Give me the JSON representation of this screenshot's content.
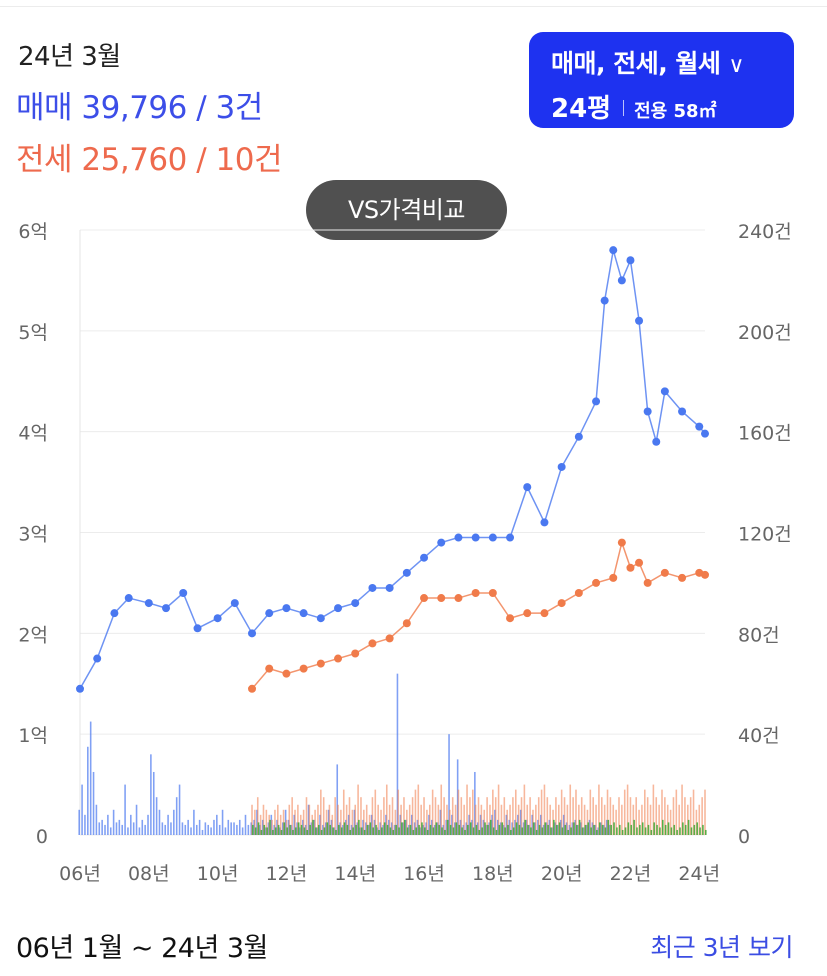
{
  "summary": {
    "period": "24년 3월",
    "sale_text": "매매 39,796 / 3건",
    "jeonse_text": "전세 25,760 / 10건"
  },
  "filter": {
    "trade_types": "매매, 전세, 월세",
    "pyeong": "24평",
    "area": "전용 58㎡"
  },
  "compare_button": "VS가격비교",
  "footer": {
    "range": "06년 1월 ~ 24년 3월",
    "recent_link": "최근 3년 보기"
  },
  "colors": {
    "sale": "#4a78f0",
    "jeonse": "#f07b4a",
    "wolse": "#47a83a",
    "button": "#1e32f0"
  },
  "icons": {
    "dropdown": "chevron-down-icon"
  },
  "chart_data": {
    "type": "line",
    "x_start": "2006-01",
    "x_end": "2024-03",
    "x_ticks": [
      "06년",
      "08년",
      "10년",
      "12년",
      "14년",
      "16년",
      "18년",
      "20년",
      "22년",
      "24년"
    ],
    "y_left_ticks": [
      "0",
      "1억",
      "2억",
      "3억",
      "4억",
      "5억",
      "6억"
    ],
    "y_left_range": [
      0,
      6
    ],
    "y_right_ticks": [
      "0",
      "40건",
      "80건",
      "120건",
      "160건",
      "200건",
      "240건"
    ],
    "y_right_range": [
      0,
      240
    ],
    "grid": true,
    "series": [
      {
        "name": "매매",
        "kind": "price",
        "dates": [
          "2006-01",
          "2006-07",
          "2007-01",
          "2007-06",
          "2008-01",
          "2008-07",
          "2009-01",
          "2009-06",
          "2010-01",
          "2010-07",
          "2011-01",
          "2011-07",
          "2012-01",
          "2012-07",
          "2013-01",
          "2013-07",
          "2014-01",
          "2014-07",
          "2015-01",
          "2015-07",
          "2016-01",
          "2016-07",
          "2017-01",
          "2017-07",
          "2018-01",
          "2018-07",
          "2019-01",
          "2019-07",
          "2020-01",
          "2020-07",
          "2021-01",
          "2021-04",
          "2021-07",
          "2021-10",
          "2022-01",
          "2022-04",
          "2022-07",
          "2022-10",
          "2023-01",
          "2023-07",
          "2024-01",
          "2024-03"
        ],
        "values": [
          1.45,
          1.75,
          2.2,
          2.35,
          2.3,
          2.25,
          2.4,
          2.05,
          2.15,
          2.3,
          2.0,
          2.2,
          2.25,
          2.2,
          2.15,
          2.25,
          2.3,
          2.45,
          2.45,
          2.6,
          2.75,
          2.9,
          2.95,
          2.95,
          2.95,
          2.95,
          3.45,
          3.1,
          3.65,
          3.95,
          4.3,
          5.3,
          5.8,
          5.5,
          5.7,
          5.1,
          4.2,
          3.9,
          4.4,
          4.2,
          4.05,
          3.98
        ]
      },
      {
        "name": "전세",
        "kind": "price",
        "dates": [
          "2011-01",
          "2011-07",
          "2012-01",
          "2012-07",
          "2013-01",
          "2013-07",
          "2014-01",
          "2014-07",
          "2015-01",
          "2015-07",
          "2016-01",
          "2016-07",
          "2017-01",
          "2017-07",
          "2018-01",
          "2018-07",
          "2019-01",
          "2019-07",
          "2020-01",
          "2020-07",
          "2021-01",
          "2021-07",
          "2021-10",
          "2022-01",
          "2022-04",
          "2022-07",
          "2023-01",
          "2023-07",
          "2024-01",
          "2024-03"
        ],
        "values": [
          1.45,
          1.65,
          1.6,
          1.65,
          1.7,
          1.75,
          1.8,
          1.9,
          1.95,
          2.1,
          2.35,
          2.35,
          2.35,
          2.4,
          2.4,
          2.15,
          2.2,
          2.2,
          2.3,
          2.4,
          2.5,
          2.55,
          2.9,
          2.65,
          2.7,
          2.5,
          2.6,
          2.55,
          2.6,
          2.58
        ]
      },
      {
        "name": "매매 거래량",
        "kind": "volume",
        "axis": "right",
        "start": "2006-01",
        "values": [
          10,
          20,
          8,
          35,
          45,
          25,
          12,
          5,
          6,
          4,
          8,
          3,
          10,
          5,
          6,
          4,
          20,
          3,
          8,
          5,
          12,
          3,
          6,
          4,
          8,
          32,
          25,
          15,
          10,
          5,
          4,
          8,
          5,
          10,
          15,
          20,
          5,
          4,
          6,
          3,
          10,
          4,
          6,
          2,
          5,
          4,
          3,
          6,
          8,
          4,
          10,
          3,
          6,
          5,
          5,
          4,
          6,
          3,
          8,
          4,
          5,
          6,
          10,
          4,
          6,
          3,
          5,
          8,
          4,
          6,
          3,
          5,
          10,
          6,
          4,
          8,
          5,
          3,
          6,
          4,
          12,
          5,
          6,
          3,
          8,
          4,
          5,
          10,
          6,
          3,
          28,
          5,
          4,
          6,
          8,
          4,
          10,
          5,
          3,
          6,
          5,
          4,
          8,
          6,
          3,
          5,
          4,
          8,
          6,
          5,
          4,
          64,
          8,
          5,
          6,
          4,
          8,
          5,
          6,
          3,
          4,
          5,
          8,
          6,
          4,
          5,
          10,
          4,
          6,
          40,
          8,
          5,
          30,
          6,
          4,
          5,
          8,
          6,
          25,
          5,
          8,
          6,
          4,
          5,
          8,
          10,
          6,
          5,
          4,
          8,
          6,
          5,
          6,
          8,
          10,
          5,
          6,
          4,
          8,
          5,
          6,
          8,
          4,
          5,
          6,
          3,
          5,
          4,
          6,
          8,
          5,
          4,
          5,
          6,
          4,
          5,
          3,
          4,
          6,
          5,
          4,
          3,
          5,
          4,
          6,
          4
        ]
      },
      {
        "name": "전세 거래량",
        "kind": "volume",
        "axis": "right",
        "start": "2011-01",
        "values": [
          12,
          10,
          15,
          8,
          12,
          10,
          8,
          6,
          10,
          12,
          8,
          10,
          6,
          12,
          15,
          10,
          12,
          8,
          10,
          15,
          12,
          8,
          10,
          12,
          18,
          15,
          10,
          12,
          8,
          15,
          12,
          10,
          18,
          12,
          15,
          10,
          12,
          20,
          15,
          10,
          12,
          8,
          15,
          18,
          12,
          10,
          15,
          20,
          12,
          15,
          10,
          18,
          12,
          15,
          10,
          12,
          15,
          18,
          20,
          12,
          15,
          10,
          12,
          18,
          15,
          12,
          20,
          15,
          12,
          10,
          15,
          12,
          18,
          15,
          12,
          20,
          15,
          18,
          12,
          15,
          12,
          10,
          15,
          12,
          18,
          15,
          20,
          12,
          15,
          10,
          12,
          15,
          18,
          12,
          15,
          20,
          12,
          15,
          10,
          12,
          15,
          18,
          20,
          15,
          12,
          10,
          15,
          12,
          18,
          15,
          12,
          20,
          15,
          18,
          12,
          15,
          12,
          10,
          18,
          15,
          12,
          20,
          15,
          12,
          18,
          15,
          12,
          10,
          15,
          12,
          18,
          20,
          15,
          12,
          15,
          10,
          12,
          18,
          15,
          12,
          20,
          15,
          12,
          18,
          15,
          12,
          10,
          15,
          18,
          12,
          20,
          15,
          12,
          15,
          18,
          10,
          12,
          15,
          18,
          20,
          15,
          12,
          18,
          15,
          12,
          20
        ]
      },
      {
        "name": "월세 거래량",
        "kind": "volume",
        "axis": "right",
        "start": "2011-01",
        "values": [
          4,
          3,
          5,
          2,
          4,
          3,
          6,
          2,
          3,
          4,
          2,
          5,
          3,
          4,
          2,
          3,
          5,
          4,
          3,
          2,
          4,
          6,
          3,
          4,
          2,
          3,
          5,
          4,
          3,
          2,
          4,
          3,
          5,
          4,
          2,
          3,
          4,
          6,
          3,
          2,
          4,
          5,
          3,
          4,
          2,
          3,
          5,
          4,
          3,
          2,
          4,
          3,
          5,
          6,
          3,
          4,
          2,
          3,
          4,
          5,
          3,
          2,
          4,
          3,
          5,
          4,
          3,
          2,
          6,
          4,
          3,
          5,
          4,
          3,
          2,
          4,
          5,
          3,
          4,
          2,
          3,
          5,
          4,
          6,
          3,
          2,
          4,
          5,
          3,
          4,
          2,
          3,
          5,
          4,
          3,
          6,
          4,
          3,
          5,
          2,
          4,
          3,
          5,
          4,
          3,
          6,
          4,
          5,
          3,
          4,
          2,
          3,
          5,
          4,
          6,
          3,
          4,
          5,
          3,
          4,
          2,
          5,
          4,
          3,
          6,
          4,
          5,
          3,
          4,
          2,
          3,
          5,
          4,
          6,
          3,
          4,
          5,
          3,
          4,
          2,
          5,
          4,
          3,
          6,
          4,
          5,
          3,
          4,
          2,
          3,
          5,
          4,
          6,
          3,
          4,
          5,
          3,
          4,
          2,
          5,
          4,
          3,
          4,
          6,
          3,
          5
        ]
      }
    ]
  }
}
